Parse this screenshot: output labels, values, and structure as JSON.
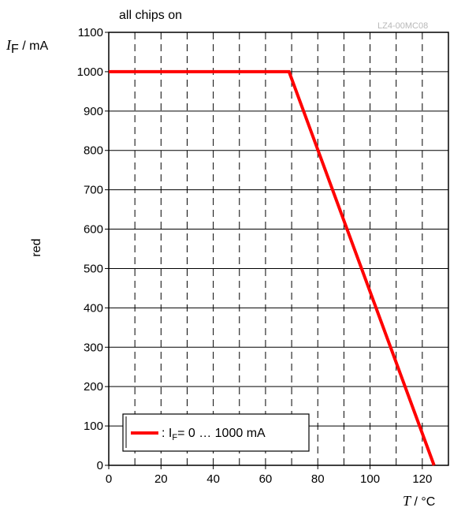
{
  "chart_data": {
    "type": "line",
    "title": "all chips on",
    "code": "LZ4-00MC08",
    "y_label_symbol": "I",
    "y_label_sub": "F",
    "y_label_unit": " / mA",
    "x_label_symbol": "T",
    "x_label_unit": " / °C",
    "side_label": "red",
    "xlim": [
      0,
      130
    ],
    "ylim": [
      0,
      1100
    ],
    "x_ticks": [
      0,
      20,
      40,
      60,
      80,
      100,
      120
    ],
    "y_ticks": [
      0,
      100,
      200,
      300,
      400,
      500,
      600,
      700,
      800,
      900,
      1000,
      1100
    ],
    "x_grid": [
      10,
      20,
      30,
      40,
      50,
      60,
      70,
      80,
      90,
      100,
      110,
      120
    ],
    "y_grid": [
      100,
      200,
      300,
      400,
      500,
      600,
      700,
      800,
      900,
      1000
    ],
    "series": [
      {
        "color": "#ff0000",
        "x": [
          0,
          69,
          124.5
        ],
        "y": [
          1000,
          1000,
          0
        ]
      }
    ],
    "legend": {
      "prefix": ": I",
      "sub": "F",
      "suffix": "= 0 … 1000 mA"
    }
  }
}
